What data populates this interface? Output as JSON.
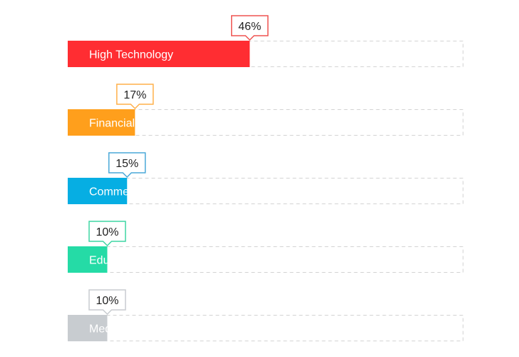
{
  "chart_data": {
    "type": "bar",
    "orientation": "horizontal",
    "grid": false,
    "xlim": [
      0,
      100
    ],
    "categories": [
      "High Technology",
      "Financial Services",
      "Commerce",
      "Education",
      "Media & Entertainment"
    ],
    "values": [
      46,
      17,
      15,
      10,
      10
    ],
    "value_labels": [
      "46%",
      "17%",
      "15%",
      "10%",
      "10%"
    ],
    "colors": [
      "#ff2d32",
      "#ff9f1c",
      "#06aee3",
      "#25dba6",
      "#c8ccd0"
    ],
    "callout_border_colors": [
      "#ef5350",
      "#ffb04a",
      "#4aa8d8",
      "#3fd6a4",
      "#c8ccd0"
    ],
    "track_color": "#d3d3d3",
    "label_color": "#ffffff"
  }
}
